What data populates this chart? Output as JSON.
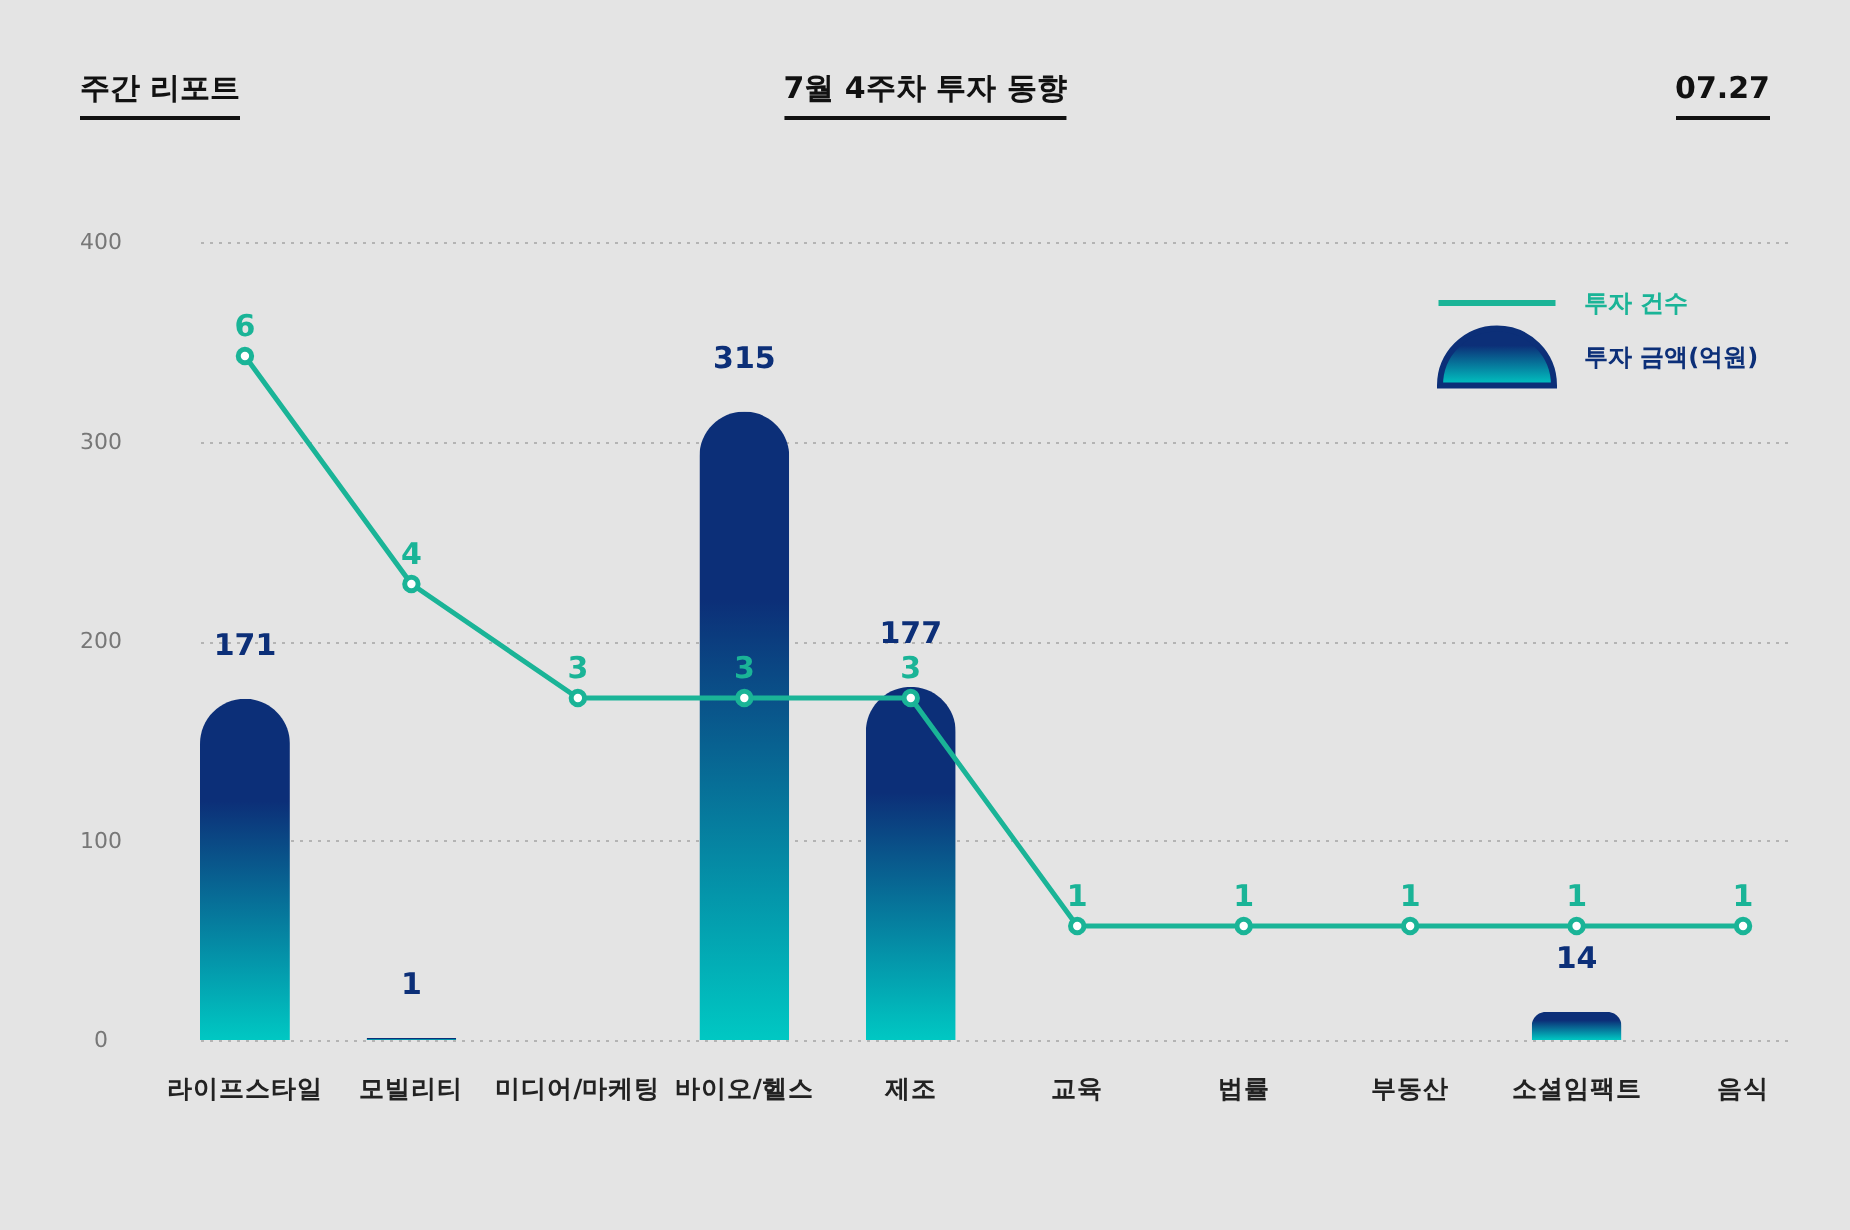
{
  "chart_data": {
    "type": "bar",
    "title": "7월 4주차 투자 동향",
    "annotations": [
      "주간 리포트",
      "07.27"
    ],
    "categories": [
      "라이프스타일",
      "모빌리티",
      "미디어/마케팅",
      "바이오/헬스",
      "제조",
      "교육",
      "법률",
      "부동산",
      "소셜임팩트",
      "음식"
    ],
    "series": [
      {
        "name": "투자 건수",
        "type": "line",
        "axis": "y2",
        "color": "#1ab497",
        "values": [
          6,
          4,
          3,
          3,
          3,
          1,
          1,
          1,
          1,
          1
        ]
      },
      {
        "name": "투자 금액(억원)",
        "color": "#0c2f78",
        "values": [
          171,
          1,
          null,
          315,
          177,
          null,
          null,
          null,
          14,
          null
        ]
      }
    ],
    "ylim": [
      0,
      400
    ],
    "yticks": [
      0,
      100,
      200,
      300,
      400
    ],
    "y2lim": [
      0,
      7
    ],
    "grid": "y",
    "legend": "top right",
    "marker": "circle",
    "data_labels": true
  }
}
